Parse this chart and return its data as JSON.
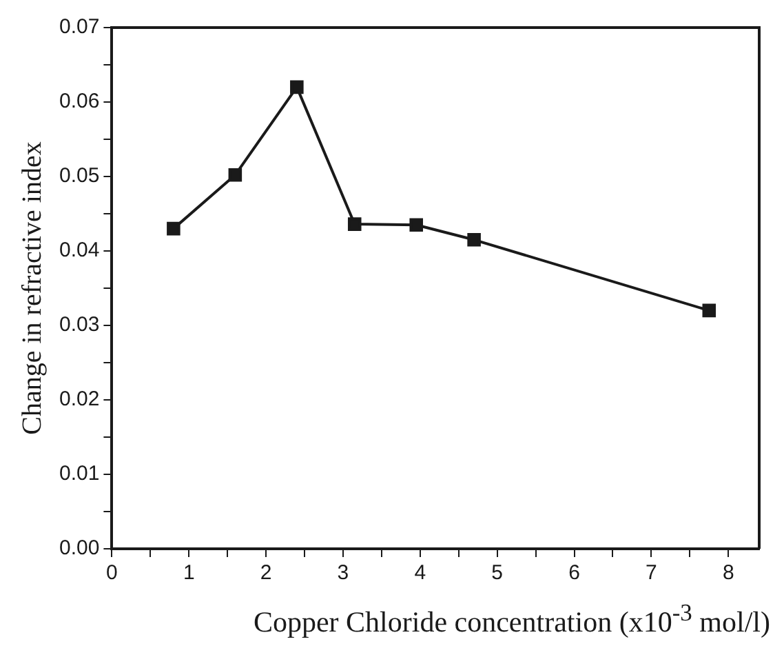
{
  "chart_data": {
    "type": "line",
    "xlabel": "Copper Chloride concentration (x10$^{-3}$ mol/l)",
    "ylabel": "Change in refractive index",
    "x": [
      0.8,
      1.6,
      2.4,
      3.15,
      3.95,
      4.7,
      7.75
    ],
    "series": [
      {
        "color": "#1a1a1a",
        "values": [
          0.043,
          0.0502,
          0.062,
          0.0436,
          0.0435,
          0.0415,
          0.032
        ]
      }
    ],
    "xlim": [
      0,
      8.4
    ],
    "xticks": [
      0,
      {
        "value": 0.5,
        "label": null
      },
      1,
      {
        "value": 1.5,
        "label": null
      },
      2,
      {
        "value": 2.5,
        "label": null
      },
      3,
      {
        "value": 3.5,
        "label": null
      },
      4,
      {
        "value": 4.5,
        "label": null
      },
      5,
      {
        "value": 5.5,
        "label": null
      },
      6,
      {
        "value": 6.5,
        "label": null
      },
      7,
      {
        "value": 7.5,
        "label": null
      },
      8
    ],
    "ylim": [
      0,
      0.07
    ],
    "yticks": [
      {
        "value": 0,
        "label": "0.00"
      },
      {
        "value": 0.005,
        "label": null
      },
      {
        "value": 0.01,
        "label": "0.01"
      },
      {
        "value": 0.015,
        "label": null
      },
      {
        "value": 0.02,
        "label": "0.02"
      },
      {
        "value": 0.025,
        "label": null
      },
      {
        "value": 0.03,
        "label": "0.03"
      },
      {
        "value": 0.035,
        "label": null
      },
      {
        "value": 0.04,
        "label": "0.04"
      },
      {
        "value": 0.045,
        "label": null
      },
      {
        "value": 0.05,
        "label": "0.05"
      },
      {
        "value": 0.055,
        "label": null
      },
      {
        "value": 0.06,
        "label": "0.06"
      },
      {
        "value": 0.065,
        "label": null
      },
      {
        "value": 0.07,
        "label": "0.07"
      }
    ],
    "grid": false,
    "legend": false,
    "marker": "square",
    "line_style": "solid"
  }
}
